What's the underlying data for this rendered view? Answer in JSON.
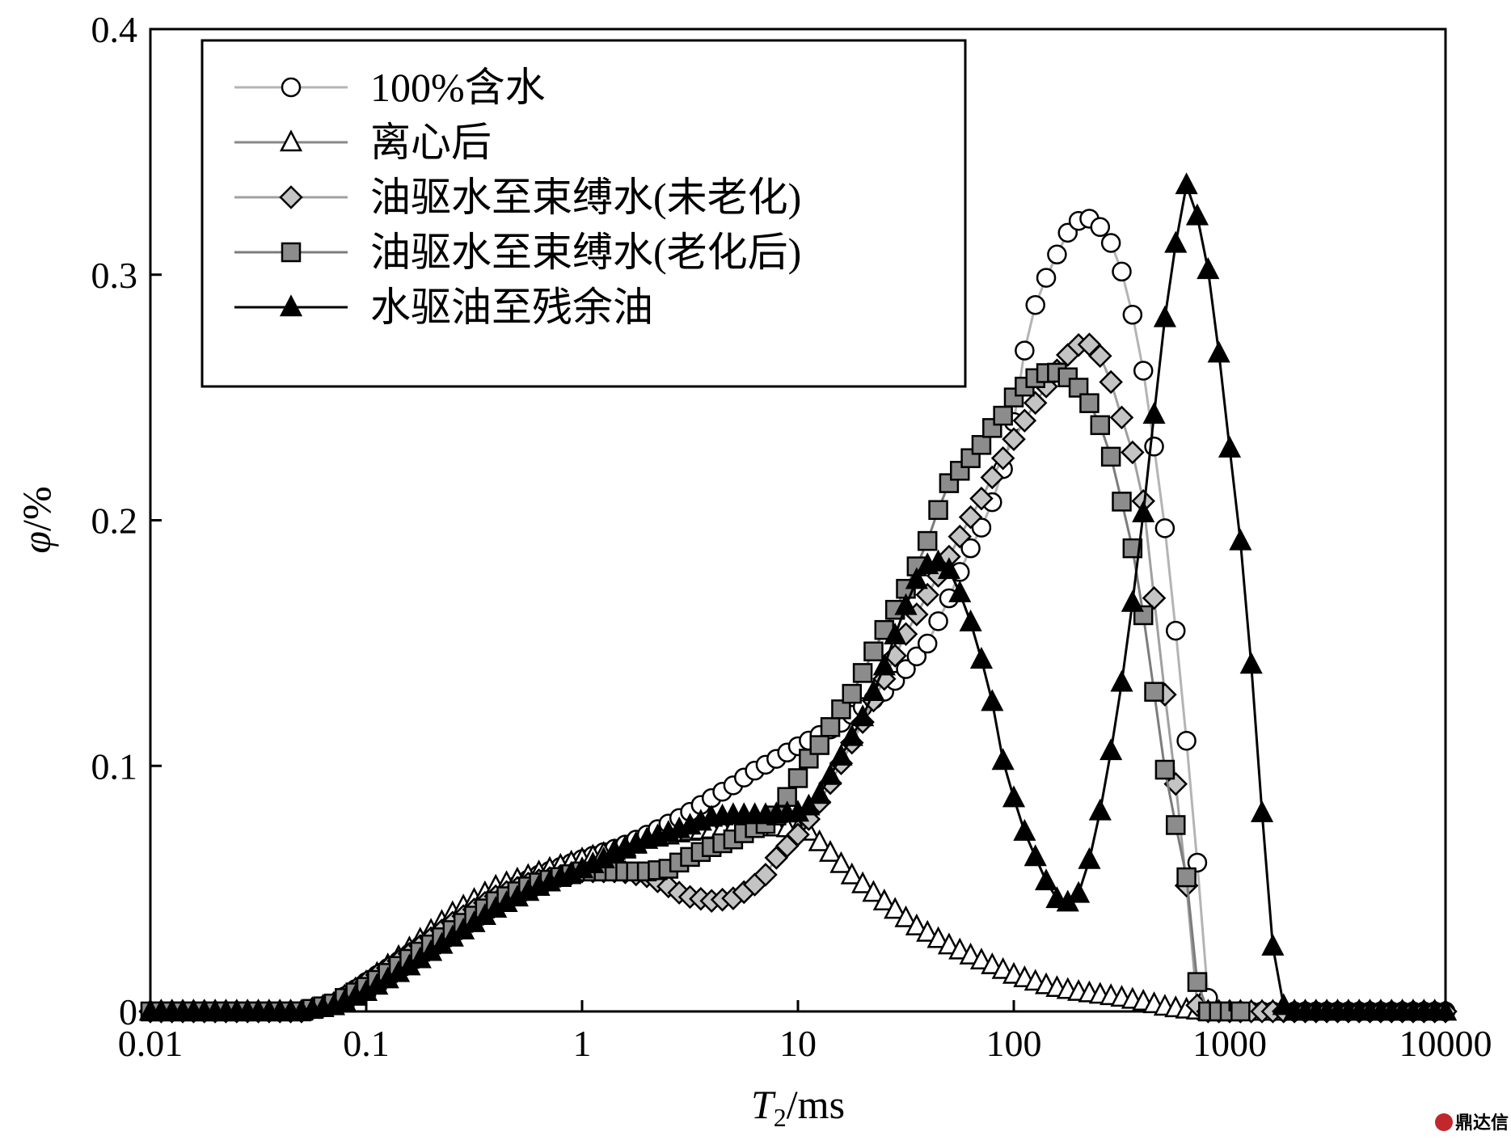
{
  "chart_data": {
    "type": "line",
    "x_scale": "log",
    "xlim": [
      0.01,
      10000
    ],
    "ylim": [
      0,
      0.4
    ],
    "x_ticks": [
      {
        "value": 0.01,
        "label": "0.01"
      },
      {
        "value": 0.1,
        "label": "0.1"
      },
      {
        "value": 1,
        "label": "1"
      },
      {
        "value": 10,
        "label": "10"
      },
      {
        "value": 100,
        "label": "100"
      },
      {
        "value": 1000,
        "label": "1000"
      },
      {
        "value": 10000,
        "label": "10000"
      }
    ],
    "y_ticks": [
      {
        "value": 0,
        "label": "0"
      },
      {
        "value": 0.1,
        "label": "0.1"
      },
      {
        "value": 0.2,
        "label": "0.2"
      },
      {
        "value": 0.3,
        "label": "0.3"
      },
      {
        "value": 0.4,
        "label": "0.4"
      }
    ],
    "xlabel": {
      "main": "T",
      "sub": "2",
      "unit": "/ms"
    },
    "ylabel": {
      "symbol": "φ",
      "unit": "/%"
    },
    "legend_position": "top-left",
    "grid": false,
    "series": [
      {
        "name": "100%含水",
        "marker": "circle",
        "line_color": "#b4b4b4",
        "fill": "#ffffff",
        "points": [
          [
            0.01,
            0
          ],
          [
            0.05,
            0
          ],
          [
            0.07,
            0.003
          ],
          [
            0.1,
            0.012
          ],
          [
            0.15,
            0.022
          ],
          [
            0.25,
            0.036
          ],
          [
            0.4,
            0.047
          ],
          [
            0.6,
            0.055
          ],
          [
            1,
            0.062
          ],
          [
            1.5,
            0.067
          ],
          [
            2,
            0.072
          ],
          [
            3,
            0.08
          ],
          [
            4,
            0.087
          ],
          [
            5,
            0.092
          ],
          [
            6,
            0.097
          ],
          [
            8,
            0.103
          ],
          [
            10,
            0.108
          ],
          [
            15,
            0.116
          ],
          [
            20,
            0.124
          ],
          [
            25,
            0.13
          ],
          [
            30,
            0.137
          ],
          [
            40,
            0.15
          ],
          [
            50,
            0.168
          ],
          [
            60,
            0.185
          ],
          [
            70,
            0.196
          ],
          [
            80,
            0.208
          ],
          [
            90,
            0.222
          ],
          [
            100,
            0.24
          ],
          [
            110,
            0.265
          ],
          [
            120,
            0.283
          ],
          [
            140,
            0.298
          ],
          [
            160,
            0.309
          ],
          [
            180,
            0.318
          ],
          [
            200,
            0.322
          ],
          [
            230,
            0.323
          ],
          [
            260,
            0.318
          ],
          [
            300,
            0.309
          ],
          [
            330,
            0.295
          ],
          [
            380,
            0.273
          ],
          [
            420,
            0.247
          ],
          [
            470,
            0.216
          ],
          [
            530,
            0.18
          ],
          [
            580,
            0.142
          ],
          [
            650,
            0.099
          ],
          [
            720,
            0.053
          ],
          [
            780,
            0.007
          ],
          [
            850,
            0
          ],
          [
            10000,
            0
          ]
        ]
      },
      {
        "name": "离心后",
        "marker": "triangle",
        "line_color": "#888888",
        "fill": "#ffffff",
        "points": [
          [
            0.01,
            0
          ],
          [
            0.05,
            0
          ],
          [
            0.07,
            0.003
          ],
          [
            0.1,
            0.012
          ],
          [
            0.15,
            0.024
          ],
          [
            0.25,
            0.04
          ],
          [
            0.4,
            0.051
          ],
          [
            0.7,
            0.058
          ],
          [
            1,
            0.062
          ],
          [
            1.5,
            0.066
          ],
          [
            2,
            0.07
          ],
          [
            3,
            0.073
          ],
          [
            5,
            0.075
          ],
          [
            8,
            0.075
          ],
          [
            11,
            0.074
          ],
          [
            14,
            0.065
          ],
          [
            18,
            0.055
          ],
          [
            25,
            0.045
          ],
          [
            35,
            0.035
          ],
          [
            50,
            0.027
          ],
          [
            70,
            0.021
          ],
          [
            100,
            0.015
          ],
          [
            150,
            0.01
          ],
          [
            200,
            0.008
          ],
          [
            300,
            0.006
          ],
          [
            400,
            0.004
          ],
          [
            500,
            0.002
          ],
          [
            600,
            0.001
          ],
          [
            800,
            0
          ],
          [
            10000,
            0
          ]
        ]
      },
      {
        "name": "油驱水至束缚水(未老化)",
        "marker": "diamond",
        "line_color": "#a0a0a0",
        "fill": "#c4c4c4",
        "points": [
          [
            0.01,
            0
          ],
          [
            0.05,
            0
          ],
          [
            0.07,
            0.003
          ],
          [
            0.1,
            0.012
          ],
          [
            0.15,
            0.022
          ],
          [
            0.25,
            0.036
          ],
          [
            0.4,
            0.047
          ],
          [
            0.6,
            0.053
          ],
          [
            1,
            0.057
          ],
          [
            1.5,
            0.057
          ],
          [
            2,
            0.055
          ],
          [
            2.5,
            0.051
          ],
          [
            3,
            0.047
          ],
          [
            4,
            0.045
          ],
          [
            5,
            0.046
          ],
          [
            6,
            0.05
          ],
          [
            7,
            0.055
          ],
          [
            8,
            0.063
          ],
          [
            10,
            0.072
          ],
          [
            12,
            0.082
          ],
          [
            15,
            0.097
          ],
          [
            20,
            0.118
          ],
          [
            25,
            0.135
          ],
          [
            30,
            0.15
          ],
          [
            40,
            0.17
          ],
          [
            50,
            0.185
          ],
          [
            60,
            0.198
          ],
          [
            70,
            0.208
          ],
          [
            80,
            0.218
          ],
          [
            100,
            0.233
          ],
          [
            120,
            0.245
          ],
          [
            150,
            0.258
          ],
          [
            180,
            0.268
          ],
          [
            210,
            0.273
          ],
          [
            240,
            0.27
          ],
          [
            270,
            0.262
          ],
          [
            300,
            0.248
          ],
          [
            350,
            0.23
          ],
          [
            400,
            0.207
          ],
          [
            430,
            0.182
          ],
          [
            470,
            0.15
          ],
          [
            520,
            0.117
          ],
          [
            580,
            0.083
          ],
          [
            650,
            0.04
          ],
          [
            700,
            0.003
          ],
          [
            750,
            0
          ],
          [
            10000,
            0
          ]
        ]
      },
      {
        "name": "油驱水至束缚水(老化后)",
        "marker": "square",
        "line_color": "#7c7c7c",
        "fill": "#8c8c8c",
        "points": [
          [
            0.01,
            0
          ],
          [
            0.05,
            0
          ],
          [
            0.07,
            0.003
          ],
          [
            0.1,
            0.01
          ],
          [
            0.15,
            0.02
          ],
          [
            0.25,
            0.033
          ],
          [
            0.4,
            0.045
          ],
          [
            0.6,
            0.052
          ],
          [
            1,
            0.057
          ],
          [
            1.5,
            0.057
          ],
          [
            2,
            0.057
          ],
          [
            2.5,
            0.058
          ],
          [
            3,
            0.062
          ],
          [
            4,
            0.067
          ],
          [
            5,
            0.07
          ],
          [
            6,
            0.074
          ],
          [
            7,
            0.076
          ],
          [
            8,
            0.08
          ],
          [
            9,
            0.088
          ],
          [
            10,
            0.095
          ],
          [
            11,
            0.102
          ],
          [
            13,
            0.11
          ],
          [
            15,
            0.12
          ],
          [
            18,
            0.13
          ],
          [
            20,
            0.138
          ],
          [
            25,
            0.155
          ],
          [
            30,
            0.168
          ],
          [
            35,
            0.18
          ],
          [
            40,
            0.192
          ],
          [
            45,
            0.205
          ],
          [
            50,
            0.215
          ],
          [
            60,
            0.223
          ],
          [
            70,
            0.23
          ],
          [
            80,
            0.238
          ],
          [
            90,
            0.243
          ],
          [
            100,
            0.25
          ],
          [
            120,
            0.257
          ],
          [
            150,
            0.261
          ],
          [
            180,
            0.258
          ],
          [
            210,
            0.252
          ],
          [
            240,
            0.243
          ],
          [
            270,
            0.232
          ],
          [
            300,
            0.217
          ],
          [
            330,
            0.2
          ],
          [
            370,
            0.182
          ],
          [
            400,
            0.16
          ],
          [
            440,
            0.135
          ],
          [
            480,
            0.107
          ],
          [
            550,
            0.08
          ],
          [
            640,
            0.052
          ],
          [
            700,
            0.02
          ],
          [
            720,
            0
          ],
          [
            1200,
            0
          ]
        ]
      },
      {
        "name": "水驱油至残余油",
        "marker": "filled-triangle",
        "line_color": "#000000",
        "fill": "#000000",
        "points": [
          [
            0.01,
            0
          ],
          [
            0.05,
            0
          ],
          [
            0.07,
            0.002
          ],
          [
            0.1,
            0.008
          ],
          [
            0.15,
            0.017
          ],
          [
            0.25,
            0.03
          ],
          [
            0.4,
            0.042
          ],
          [
            0.6,
            0.05
          ],
          [
            1,
            0.058
          ],
          [
            1.5,
            0.065
          ],
          [
            2,
            0.07
          ],
          [
            3,
            0.075
          ],
          [
            4,
            0.079
          ],
          [
            5,
            0.08
          ],
          [
            7,
            0.08
          ],
          [
            10,
            0.081
          ],
          [
            12,
            0.085
          ],
          [
            15,
            0.1
          ],
          [
            20,
            0.12
          ],
          [
            25,
            0.14
          ],
          [
            30,
            0.16
          ],
          [
            35,
            0.175
          ],
          [
            40,
            0.182
          ],
          [
            45,
            0.183
          ],
          [
            50,
            0.18
          ],
          [
            60,
            0.165
          ],
          [
            70,
            0.145
          ],
          [
            80,
            0.125
          ],
          [
            90,
            0.1
          ],
          [
            110,
            0.075
          ],
          [
            130,
            0.06
          ],
          [
            150,
            0.048
          ],
          [
            170,
            0.043
          ],
          [
            200,
            0.048
          ],
          [
            230,
            0.065
          ],
          [
            260,
            0.088
          ],
          [
            300,
            0.12
          ],
          [
            340,
            0.153
          ],
          [
            380,
            0.188
          ],
          [
            420,
            0.22
          ],
          [
            470,
            0.262
          ],
          [
            520,
            0.294
          ],
          [
            580,
            0.32
          ],
          [
            620,
            0.338
          ],
          [
            680,
            0.33
          ],
          [
            760,
            0.313
          ],
          [
            850,
            0.285
          ],
          [
            950,
            0.245
          ],
          [
            1100,
            0.2
          ],
          [
            1250,
            0.145
          ],
          [
            1400,
            0.085
          ],
          [
            1600,
            0.022
          ],
          [
            1800,
            0
          ],
          [
            10000,
            0
          ]
        ]
      }
    ]
  },
  "watermark": {
    "text": "鼎达信"
  }
}
